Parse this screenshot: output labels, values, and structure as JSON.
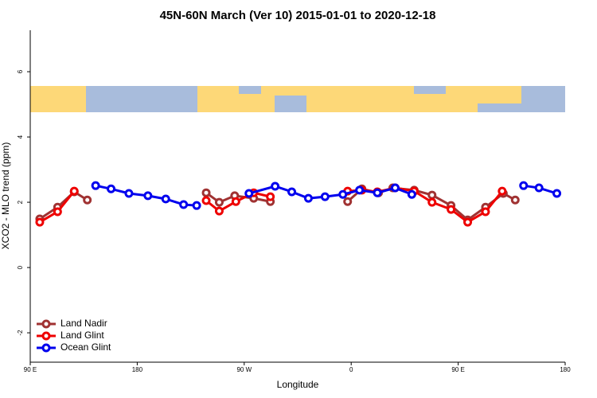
{
  "chart_data": {
    "type": "line",
    "title": "45N-60N March (Ver 10)   2015-01-01 to 2020-12-18",
    "x_label": "Longitude",
    "y_label": "XCO2 - MLO trend (ppm)",
    "xlim": [
      90,
      540
    ],
    "ylim": [
      -2.9,
      7.27
    ],
    "xticks": [
      {
        "value": 90,
        "label": "90 E"
      },
      {
        "value": 180,
        "label": "180"
      },
      {
        "value": 270,
        "label": "90 W"
      },
      {
        "value": 360,
        "label": "0"
      },
      {
        "value": 450,
        "label": "90 E"
      },
      {
        "value": 540,
        "label": "180"
      }
    ],
    "yticks": [
      -2,
      0,
      2,
      4,
      6
    ],
    "legend": "bottomleft",
    "series": [
      {
        "name": "Land Nadir",
        "color": "#a03232",
        "x": [
          98,
          113,
          127,
          138,
          null,
          238,
          249,
          262,
          278,
          292,
          null,
          357,
          369,
          383,
          395,
          413,
          428,
          444,
          458,
          473,
          488,
          498
        ],
        "values": [
          1.49,
          1.85,
          2.32,
          2.07,
          null,
          2.29,
          2.0,
          2.2,
          2.12,
          2.02,
          null,
          2.02,
          2.41,
          2.29,
          2.44,
          2.37,
          2.22,
          1.9,
          1.46,
          1.85,
          2.27,
          2.07
        ]
      },
      {
        "name": "Land Glint",
        "color": "#ee0000",
        "x": [
          98,
          113,
          127,
          null,
          238,
          249,
          263,
          278,
          292,
          null,
          357,
          369,
          382,
          397,
          413,
          428,
          444,
          458,
          473,
          487
        ],
        "values": [
          1.39,
          1.71,
          2.34,
          null,
          2.05,
          1.73,
          2.02,
          2.29,
          2.17,
          null,
          2.34,
          2.37,
          2.32,
          2.44,
          2.34,
          2.0,
          1.78,
          1.39,
          1.71,
          2.34
        ]
      },
      {
        "name": "Ocean Glint",
        "color": "#0000ee",
        "x": [
          145,
          158,
          173,
          189,
          204,
          219,
          230,
          null,
          274,
          296,
          310,
          324,
          338,
          353,
          367,
          382,
          397,
          411,
          null,
          505,
          518,
          533
        ],
        "values": [
          2.51,
          2.41,
          2.27,
          2.2,
          2.1,
          1.93,
          1.9,
          null,
          2.27,
          2.49,
          2.32,
          2.12,
          2.17,
          2.24,
          2.37,
          2.29,
          2.44,
          2.24,
          null,
          2.51,
          2.44,
          2.27
        ]
      }
    ]
  }
}
